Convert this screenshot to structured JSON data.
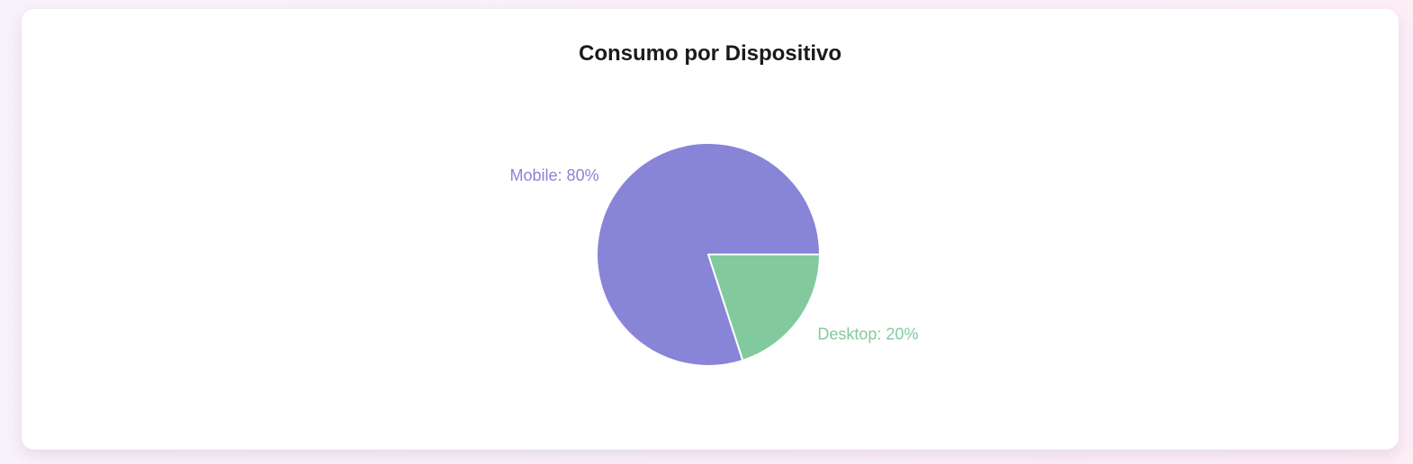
{
  "chart_data": {
    "type": "pie",
    "title": "Consumo por Dispositivo",
    "slices": [
      {
        "name": "Mobile",
        "value": 80,
        "unit": "%",
        "color": "#8884d8",
        "label": "Mobile: 80%"
      },
      {
        "name": "Desktop",
        "value": 20,
        "unit": "%",
        "color": "#82ca9d",
        "label": "Desktop: 20%"
      }
    ],
    "total": 100,
    "start_angle_deg": 0,
    "direction": "counterclockwise",
    "slice_stroke": "#ffffff",
    "label_position": "outside",
    "legend": "none",
    "grid": "off"
  },
  "colors": {
    "card_background": "#ffffff",
    "page_background_left": "#f8f2fb",
    "page_background_right": "#fdeef6",
    "title_text": "#1a1a1a"
  }
}
